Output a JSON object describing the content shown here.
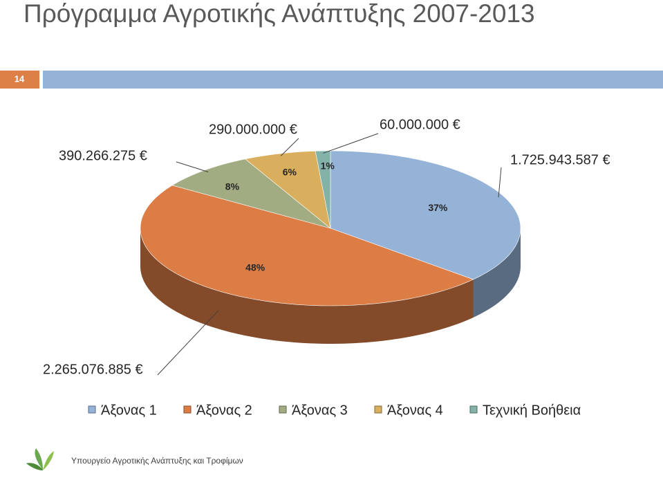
{
  "slide": {
    "title": "Πρόγραμμα Αγροτικής Ανάπτυξης 2007-2013",
    "number": "14",
    "footer": "Υπουργείο Αγροτικής Ανάπτυξης και Τροφίμων"
  },
  "chart_data": {
    "type": "pie3d",
    "categories": [
      "Άξονας 1",
      "Άξονας 2",
      "Άξονας 3",
      "Άξονας 4",
      "Τεχνική Βοήθεια"
    ],
    "values": [
      1725943587,
      2265076885,
      390266275,
      290000000,
      60000000
    ],
    "value_labels": [
      "1.725.943.587 €",
      "2.265.076.885 €",
      "390.266.275 €",
      "290.000.000 €",
      "60.000.000 €"
    ],
    "percentages": [
      37,
      48,
      8,
      6,
      1
    ],
    "percentage_labels": [
      "37%",
      "48%",
      "8%",
      "6%",
      "1%"
    ],
    "colors": [
      "#95b3d7",
      "#dc7d46",
      "#a2ac82",
      "#d9ae5c",
      "#82b2a8"
    ],
    "legend": "bottom"
  }
}
